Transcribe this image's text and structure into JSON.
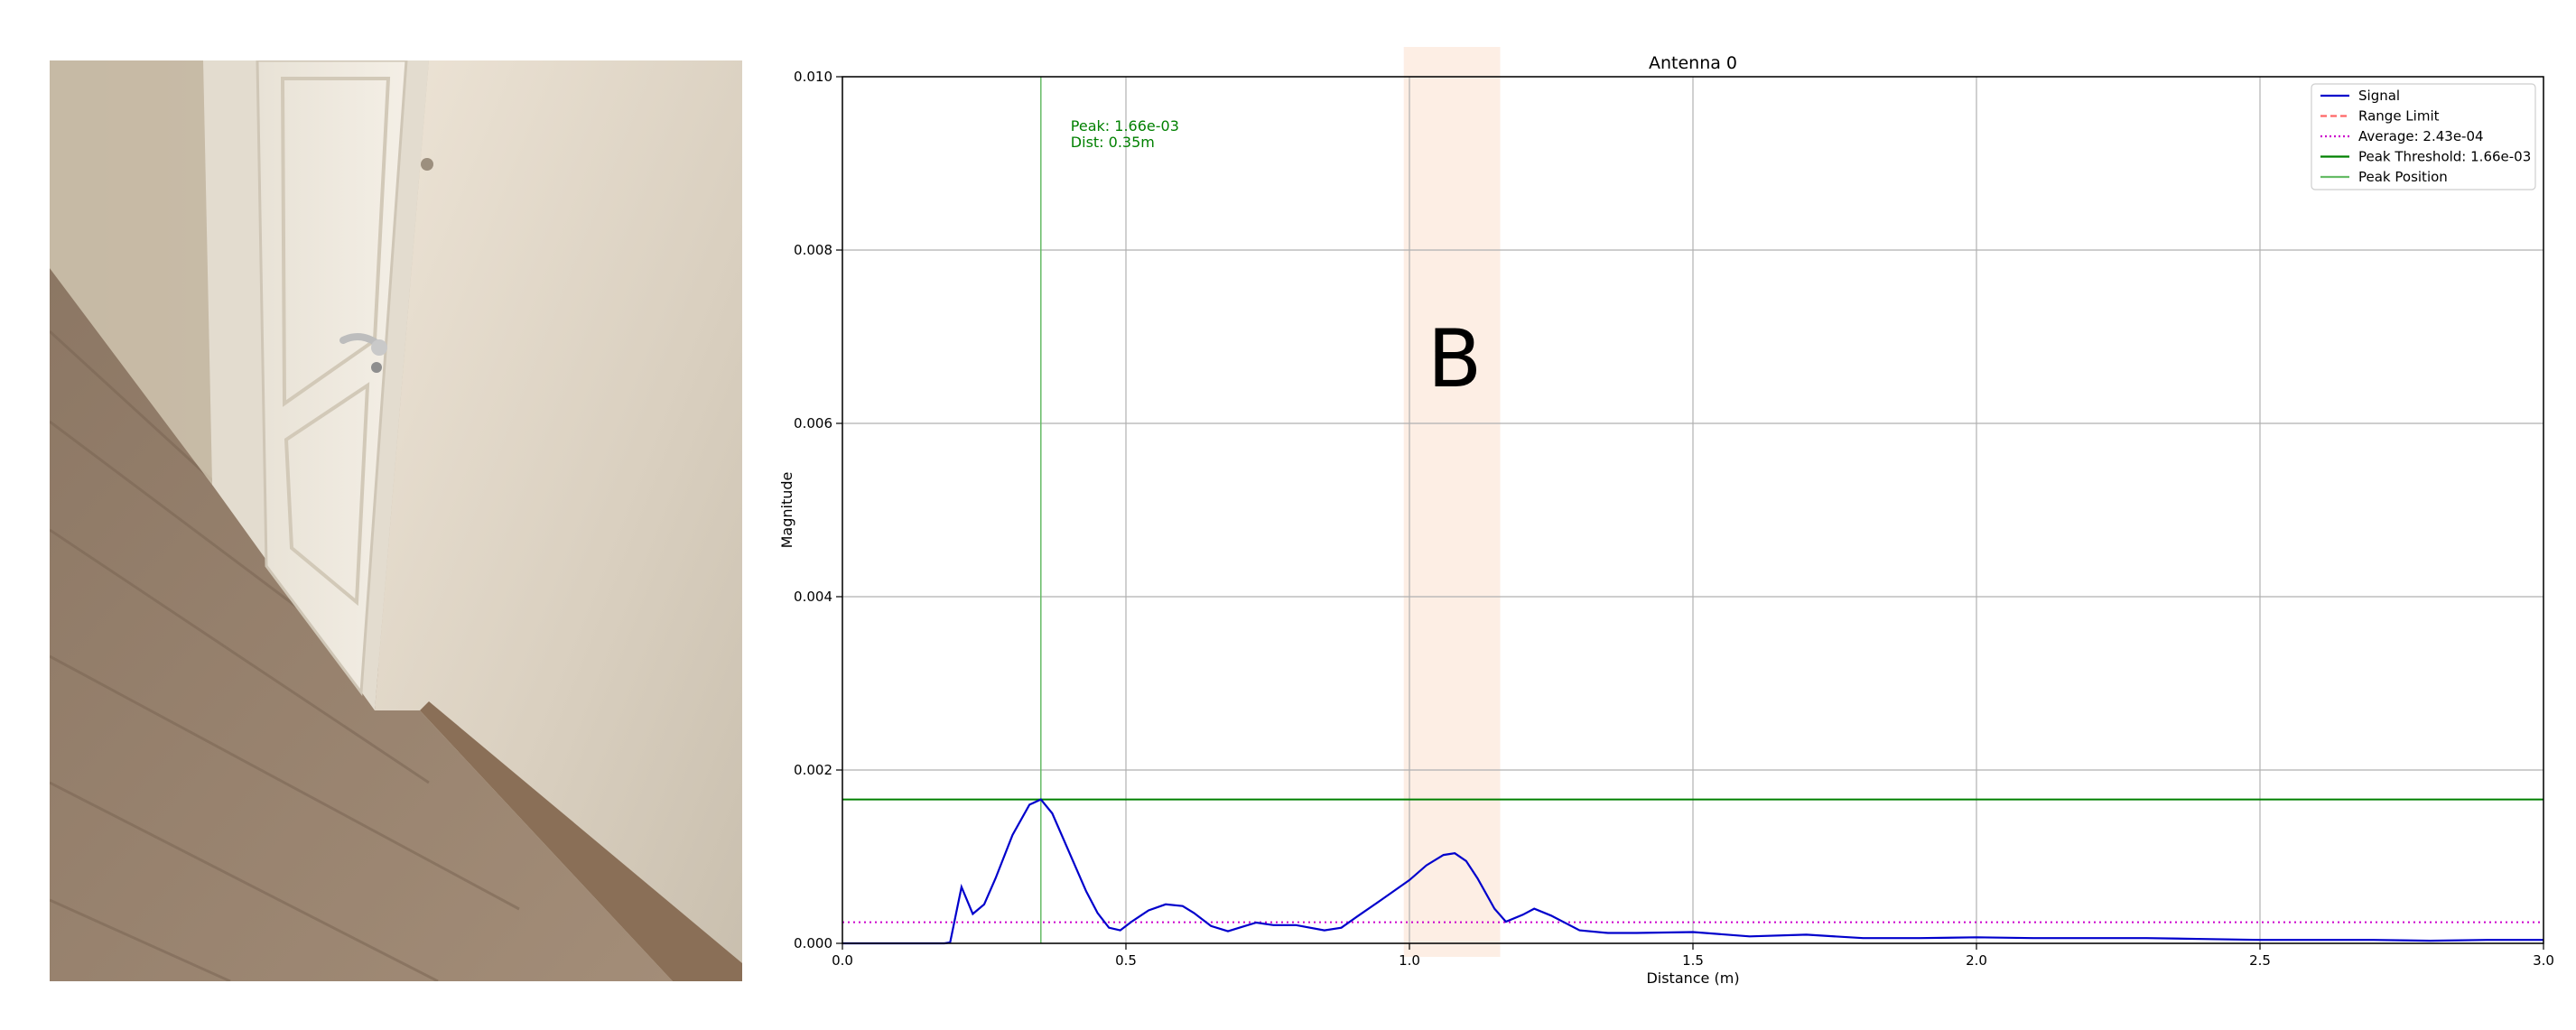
{
  "photo": {
    "description_icon": "hallway-door-photo"
  },
  "chart_data": {
    "type": "line",
    "title": "Antenna 0",
    "xlabel": "Distance (m)",
    "ylabel": "Magnitude",
    "xlim": [
      0.0,
      3.0
    ],
    "ylim": [
      0.0,
      0.01
    ],
    "xticks": [
      "0.0",
      "0.5",
      "1.0",
      "1.5",
      "2.0",
      "2.5",
      "3.0"
    ],
    "xtick_values": [
      0.0,
      0.5,
      1.0,
      1.5,
      2.0,
      2.5,
      3.0
    ],
    "yticks": [
      "0.000",
      "0.002",
      "0.004",
      "0.006",
      "0.008",
      "0.010"
    ],
    "ytick_values": [
      0.0,
      0.002,
      0.004,
      0.006,
      0.008,
      0.01
    ],
    "grid": true,
    "legend_position": "top-right",
    "legend": [
      {
        "label": "Signal",
        "color": "#0000cc",
        "style": "solid"
      },
      {
        "label": "Range Limit",
        "color": "#ff6666",
        "style": "dashed"
      },
      {
        "label": "Average: 2.43e-04",
        "color": "#cc00cc",
        "style": "dotted"
      },
      {
        "label": "Peak Threshold: 1.66e-03",
        "color": "#008000",
        "style": "solid"
      },
      {
        "label": "Peak Position",
        "color": "#66bb66",
        "style": "solid"
      }
    ],
    "signal": {
      "x": [
        0.0,
        0.1,
        0.18,
        0.19,
        0.21,
        0.23,
        0.25,
        0.27,
        0.3,
        0.33,
        0.35,
        0.37,
        0.4,
        0.43,
        0.45,
        0.47,
        0.49,
        0.51,
        0.54,
        0.57,
        0.6,
        0.62,
        0.65,
        0.68,
        0.7,
        0.73,
        0.76,
        0.8,
        0.85,
        0.88,
        0.91,
        0.95,
        1.0,
        1.03,
        1.06,
        1.08,
        1.1,
        1.12,
        1.15,
        1.17,
        1.2,
        1.22,
        1.25,
        1.3,
        1.35,
        1.4,
        1.5,
        1.6,
        1.7,
        1.8,
        1.9,
        2.0,
        2.1,
        2.2,
        2.3,
        2.4,
        2.5,
        2.6,
        2.7,
        2.8,
        2.9,
        3.0
      ],
      "y": [
        0.0,
        0.0,
        0.0,
        1e-05,
        0.00065,
        0.00034,
        0.00045,
        0.00075,
        0.00125,
        0.0016,
        0.00166,
        0.0015,
        0.00105,
        0.0006,
        0.00035,
        0.00018,
        0.00015,
        0.00025,
        0.00038,
        0.00045,
        0.00043,
        0.00035,
        0.0002,
        0.00014,
        0.00018,
        0.00024,
        0.00021,
        0.00021,
        0.00015,
        0.00018,
        0.00032,
        0.0005,
        0.00073,
        0.0009,
        0.00102,
        0.00104,
        0.00095,
        0.00075,
        0.0004,
        0.00025,
        0.00033,
        0.0004,
        0.00032,
        0.00015,
        0.00012,
        0.00012,
        0.00013,
        8e-05,
        0.0001,
        6e-05,
        6e-05,
        7e-05,
        6e-05,
        6e-05,
        6e-05,
        5e-05,
        4e-05,
        4e-05,
        4e-05,
        3e-05,
        4e-05,
        4e-05
      ]
    },
    "average": 0.000243,
    "peak_threshold": 0.00166,
    "peak_position_x": 0.35,
    "peak_annotation": [
      "Peak: 1.66e-03",
      "Dist: 0.35m"
    ],
    "highlight_region": {
      "x_start": 0.99,
      "x_end": 1.16,
      "color": "#fdeee4",
      "label": "B"
    }
  }
}
